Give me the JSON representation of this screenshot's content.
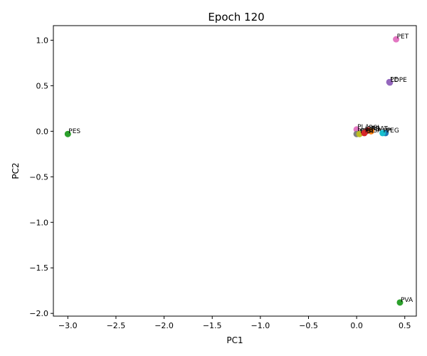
{
  "chart_data": {
    "type": "scatter",
    "title": "Epoch 120",
    "xlabel": "PC1",
    "ylabel": "PC2",
    "xlim": [
      -3.15,
      0.62
    ],
    "ylim": [
      -2.03,
      1.16
    ],
    "xticks": [
      -3.0,
      -2.5,
      -2.0,
      -1.5,
      -1.0,
      -0.5,
      0.0,
      0.5
    ],
    "xtick_labels": [
      "−3.0",
      "−2.5",
      "−2.0",
      "−1.5",
      "−1.0",
      "−0.5",
      "0.0",
      "0.5"
    ],
    "yticks": [
      1.0,
      0.5,
      0.0,
      -0.5,
      -1.0,
      -1.5,
      -2.0
    ],
    "ytick_labels": [
      "1.0",
      "0.5",
      "0.0",
      "−0.5",
      "−1.0",
      "−1.5",
      "−2.0"
    ],
    "grid": false,
    "points": [
      {
        "label": "PES",
        "x": -3.0,
        "y": -0.03,
        "color": "#2ca02c"
      },
      {
        "label": "PET",
        "x": 0.41,
        "y": 1.01,
        "color": "#e377c2"
      },
      {
        "label": "PE",
        "x": 0.34,
        "y": 0.54,
        "color": "#9467bd"
      },
      {
        "label": "LDPE",
        "x": 0.345,
        "y": 0.535,
        "color": "#9467bd"
      },
      {
        "label": "PVA",
        "x": 0.45,
        "y": -1.88,
        "color": "#2ca02c"
      },
      {
        "label": "PLA",
        "x": 0.0,
        "y": 0.02,
        "color": "#e377c2"
      },
      {
        "label": "PBS",
        "x": 0.1,
        "y": 0.0,
        "color": "#8c564b"
      },
      {
        "label": "PCL",
        "x": 0.12,
        "y": 0.01,
        "color": "#d62728"
      },
      {
        "label": "PBAT",
        "x": 0.15,
        "y": 0.0,
        "color": "#ff7f0e"
      },
      {
        "label": "PHB",
        "x": 0.0,
        "y": -0.03,
        "color": "#7f7f7f"
      },
      {
        "label": "PHA",
        "x": 0.03,
        "y": -0.03,
        "color": "#bcbd22"
      },
      {
        "label": "PBSA",
        "x": 0.08,
        "y": -0.02,
        "color": "#d62728"
      },
      {
        "label": "PEG",
        "x": 0.3,
        "y": -0.02,
        "color": "#1f77b4"
      },
      {
        "label": "PP",
        "x": 0.27,
        "y": -0.02,
        "color": "#17becf"
      }
    ]
  }
}
